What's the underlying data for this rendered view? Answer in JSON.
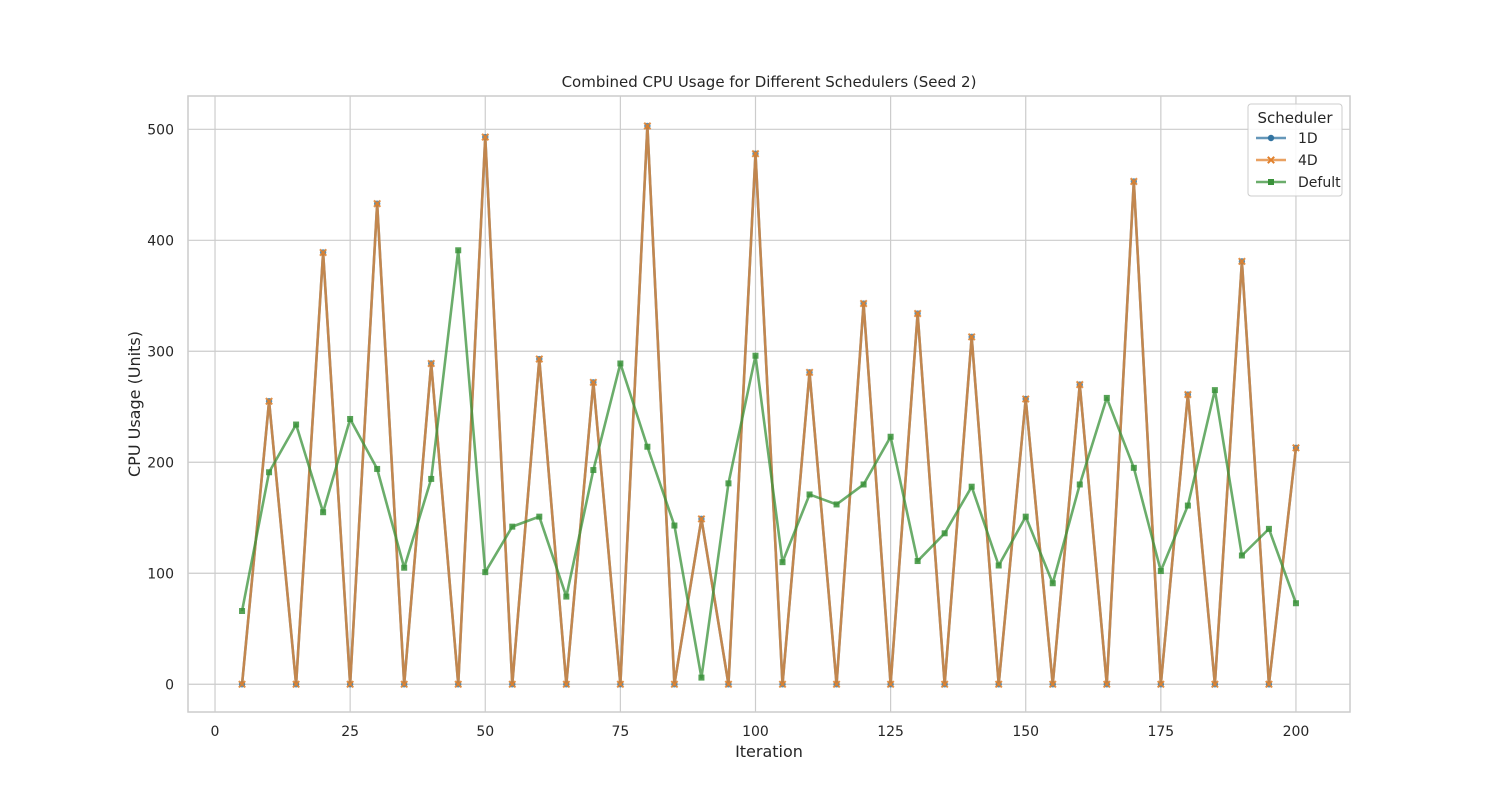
{
  "chart_data": {
    "type": "line",
    "title": "Combined CPU Usage for Different Schedulers (Seed 2)",
    "xlabel": "Iteration",
    "ylabel": "CPU Usage (Units)",
    "xlim": [
      -5,
      210
    ],
    "ylim": [
      -25,
      530
    ],
    "xticks": [
      0,
      25,
      50,
      75,
      100,
      125,
      150,
      175,
      200
    ],
    "yticks": [
      0,
      100,
      200,
      300,
      400,
      500
    ],
    "grid": true,
    "legend": {
      "title": "Scheduler",
      "position": "top-right"
    },
    "x": [
      5,
      10,
      15,
      20,
      25,
      30,
      35,
      40,
      45,
      50,
      55,
      60,
      65,
      70,
      75,
      80,
      85,
      90,
      95,
      100,
      105,
      110,
      115,
      120,
      125,
      130,
      135,
      140,
      145,
      150,
      155,
      160,
      165,
      170,
      175,
      180,
      185,
      190,
      195,
      200
    ],
    "series": [
      {
        "name": "1D",
        "color": "#3274a1",
        "marker": "circle",
        "values": [
          0,
          255,
          0,
          389,
          0,
          433,
          0,
          289,
          0,
          493,
          0,
          293,
          0,
          272,
          0,
          503,
          0,
          149,
          0,
          478,
          0,
          281,
          0,
          343,
          0,
          334,
          0,
          313,
          0,
          257,
          0,
          270,
          0,
          453,
          0,
          261,
          0,
          381,
          0,
          213
        ]
      },
      {
        "name": "4D",
        "color": "#e1812c",
        "marker": "x",
        "values": [
          0,
          255,
          0,
          389,
          0,
          433,
          0,
          289,
          0,
          493,
          0,
          293,
          0,
          272,
          0,
          503,
          0,
          149,
          0,
          478,
          0,
          281,
          0,
          343,
          0,
          334,
          0,
          313,
          0,
          257,
          0,
          270,
          0,
          453,
          0,
          261,
          0,
          381,
          0,
          213
        ]
      },
      {
        "name": "Defult",
        "color": "#3a923a",
        "marker": "square",
        "values": [
          66,
          191,
          234,
          155,
          239,
          194,
          105,
          185,
          391,
          101,
          142,
          151,
          79,
          193,
          289,
          214,
          143,
          6,
          181,
          296,
          110,
          171,
          162,
          180,
          223,
          111,
          136,
          178,
          107,
          151,
          91,
          180,
          258,
          195,
          102,
          161,
          265,
          116,
          140,
          73
        ]
      }
    ]
  }
}
